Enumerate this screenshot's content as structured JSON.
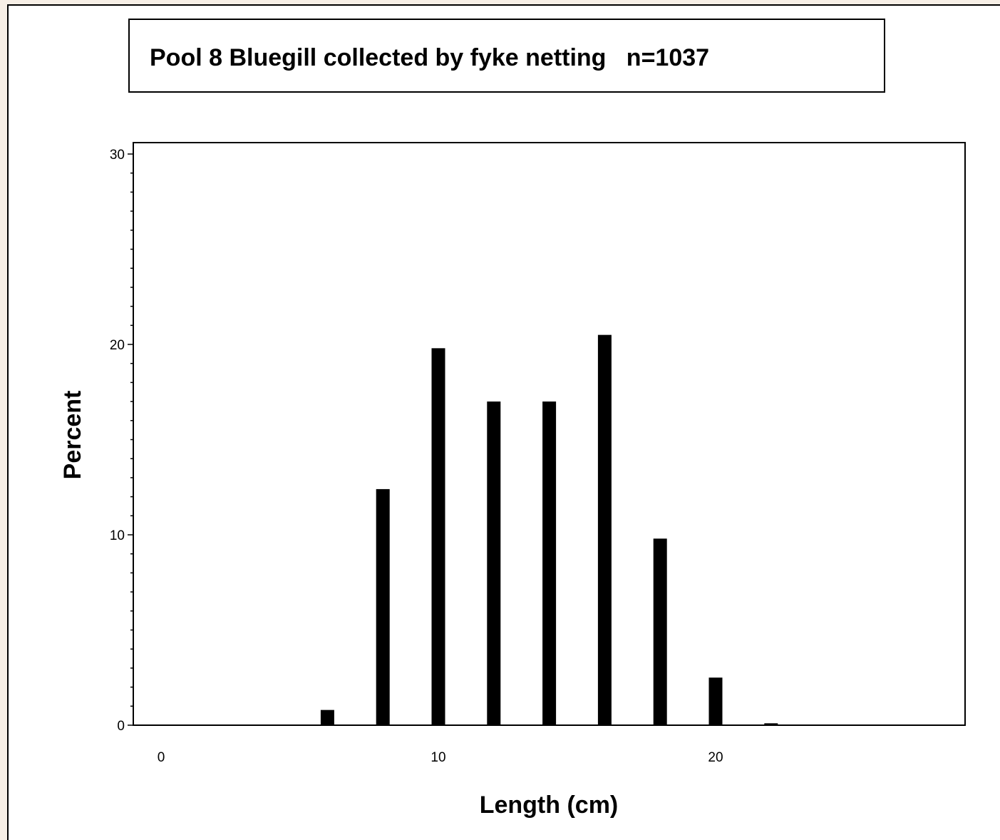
{
  "chart_data": {
    "type": "bar",
    "title": "Pool 8 Bluegill collected by fyke netting   n=1037",
    "xlabel": "Length (cm)",
    "ylabel": "Percent",
    "xlim": [
      -1,
      29
    ],
    "ylim": [
      0,
      30
    ],
    "x_ticks": [
      0,
      10,
      20
    ],
    "y_ticks": [
      0,
      10,
      20,
      30
    ],
    "grid": false,
    "legend": "none",
    "bar_color": "#000000",
    "x": [
      6,
      8,
      10,
      12,
      14,
      16,
      18,
      20,
      22
    ],
    "values": [
      0.8,
      12.4,
      19.8,
      17.0,
      17.0,
      20.5,
      9.8,
      2.5,
      0.1
    ]
  }
}
